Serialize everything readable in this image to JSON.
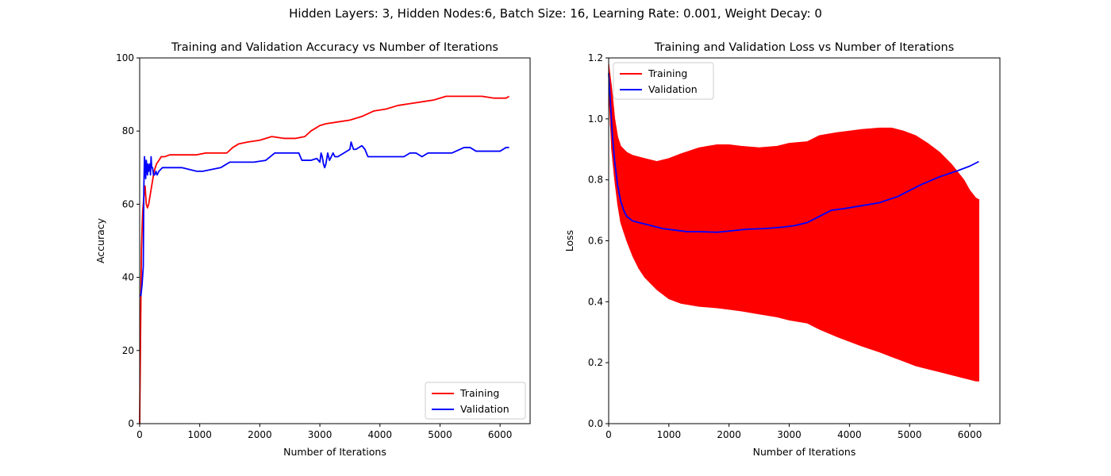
{
  "suptitle": "Hidden Layers: 3, Hidden Nodes:6, Batch Size: 16, Learning Rate: 0.001, Weight Decay: 0",
  "colors": {
    "training": "#ff0000",
    "validation": "#0000ff"
  },
  "chart_data": [
    {
      "type": "line",
      "title": "Training and Validation Accuracy vs Number of Iterations",
      "xlabel": "Number of Iterations",
      "ylabel": "Accuracy",
      "xlim": [
        0,
        6500
      ],
      "ylim": [
        0,
        100
      ],
      "xticks": [
        0,
        1000,
        2000,
        3000,
        4000,
        5000,
        6000
      ],
      "yticks": [
        0,
        20,
        40,
        60,
        80,
        100
      ],
      "legend": "lower-right",
      "series": [
        {
          "name": "Training",
          "color": "#ff0000",
          "x": [
            0,
            15,
            30,
            50,
            70,
            90,
            110,
            130,
            150,
            180,
            210,
            240,
            280,
            320,
            360,
            420,
            500,
            600,
            700,
            800,
            950,
            1100,
            1300,
            1450,
            1550,
            1650,
            1800,
            2000,
            2200,
            2400,
            2600,
            2750,
            2850,
            3000,
            3100,
            3300,
            3500,
            3700,
            3900,
            4100,
            4300,
            4500,
            4700,
            4900,
            5100,
            5300,
            5500,
            5700,
            5900,
            6100,
            6150
          ],
          "y": [
            0,
            25,
            48,
            58,
            62,
            65,
            60,
            59,
            60,
            63,
            66,
            69,
            71,
            72,
            73,
            73,
            73.5,
            73.5,
            73.5,
            73.5,
            73.5,
            74,
            74,
            74,
            75.5,
            76.5,
            77,
            77.5,
            78.5,
            78,
            78,
            78.5,
            80,
            81.5,
            82,
            82.5,
            83,
            84,
            85.5,
            86,
            87,
            87.5,
            88,
            88.5,
            89.5,
            89.5,
            89.5,
            89.5,
            89,
            89,
            89.5
          ]
        },
        {
          "name": "Validation",
          "color": "#0000ff",
          "x": [
            0,
            20,
            40,
            60,
            70,
            80,
            90,
            100,
            110,
            120,
            130,
            140,
            150,
            160,
            170,
            180,
            190,
            200,
            215,
            230,
            250,
            270,
            290,
            320,
            380,
            500,
            700,
            950,
            1050,
            1350,
            1500,
            1700,
            1900,
            2100,
            2250,
            2400,
            2550,
            2650,
            2700,
            2850,
            2950,
            3000,
            3020,
            3040,
            3060,
            3080,
            3100,
            3130,
            3160,
            3190,
            3220,
            3250,
            3300,
            3400,
            3500,
            3520,
            3560,
            3600,
            3700,
            3750,
            3800,
            4000,
            4200,
            4400,
            4500,
            4600,
            4700,
            4800,
            5000,
            5200,
            5400,
            5500,
            5600,
            5800,
            6000,
            6100,
            6150
          ],
          "y": [
            35,
            35,
            38,
            43,
            65,
            73,
            70,
            67,
            72,
            70,
            68,
            71,
            69,
            70,
            71,
            68,
            73,
            70,
            70,
            68,
            68,
            69,
            68,
            69,
            70,
            70,
            70,
            69,
            69,
            70,
            71.5,
            71.5,
            71.5,
            72,
            74,
            74,
            74,
            74,
            72,
            72,
            72.5,
            71.5,
            74,
            73,
            71,
            70,
            71,
            74,
            72,
            73,
            74,
            73,
            73,
            74,
            75,
            77,
            75,
            75,
            76,
            75,
            73,
            73,
            73,
            73,
            74,
            74,
            73,
            74,
            74,
            74,
            75.5,
            75.5,
            74.5,
            74.5,
            74.5,
            75.5,
            75.5
          ]
        }
      ]
    },
    {
      "type": "line",
      "title": "Training and Validation Loss vs Number of Iterations",
      "xlabel": "Number of Iterations",
      "ylabel": "Loss",
      "xlim": [
        0,
        6500
      ],
      "ylim": [
        0,
        1.2
      ],
      "xticks": [
        0,
        1000,
        2000,
        3000,
        4000,
        5000,
        6000
      ],
      "yticks": [
        0.0,
        0.2,
        0.4,
        0.6,
        0.8,
        1.0,
        1.2
      ],
      "legend": "top-left",
      "series": [
        {
          "name": "Training",
          "color": "#ff0000",
          "style": "dense-oscillation",
          "x": [
            0,
            50,
            100,
            150,
            200,
            300,
            400,
            500,
            600,
            800,
            1000,
            1200,
            1500,
            1800,
            2000,
            2200,
            2500,
            2800,
            3000,
            3300,
            3500,
            3800,
            4000,
            4200,
            4500,
            4700,
            4900,
            5100,
            5300,
            5500,
            5700,
            5900,
            6000,
            6100,
            6150
          ],
          "upper": [
            1.18,
            1.1,
            1.0,
            0.94,
            0.91,
            0.89,
            0.88,
            0.875,
            0.87,
            0.86,
            0.87,
            0.885,
            0.905,
            0.915,
            0.915,
            0.91,
            0.905,
            0.91,
            0.92,
            0.925,
            0.945,
            0.955,
            0.96,
            0.965,
            0.97,
            0.97,
            0.96,
            0.945,
            0.92,
            0.89,
            0.85,
            0.8,
            0.765,
            0.74,
            0.735
          ],
          "lower": [
            1.1,
            0.9,
            0.8,
            0.72,
            0.66,
            0.6,
            0.55,
            0.51,
            0.48,
            0.44,
            0.41,
            0.395,
            0.385,
            0.38,
            0.375,
            0.37,
            0.36,
            0.35,
            0.34,
            0.33,
            0.31,
            0.285,
            0.27,
            0.255,
            0.235,
            0.22,
            0.205,
            0.19,
            0.18,
            0.17,
            0.16,
            0.15,
            0.145,
            0.14,
            0.14
          ]
        },
        {
          "name": "Validation",
          "color": "#0000ff",
          "x": [
            0,
            30,
            60,
            100,
            150,
            200,
            250,
            300,
            400,
            500,
            700,
            900,
            1100,
            1300,
            1500,
            1800,
            2000,
            2300,
            2600,
            2900,
            3100,
            3300,
            3500,
            3700,
            3900,
            4200,
            4500,
            4800,
            5000,
            5200,
            5500,
            5800,
            6000,
            6150
          ],
          "y": [
            1.15,
            1.05,
            0.95,
            0.86,
            0.78,
            0.73,
            0.7,
            0.68,
            0.665,
            0.66,
            0.65,
            0.64,
            0.635,
            0.63,
            0.63,
            0.628,
            0.632,
            0.638,
            0.64,
            0.645,
            0.65,
            0.66,
            0.68,
            0.7,
            0.705,
            0.715,
            0.725,
            0.745,
            0.765,
            0.785,
            0.81,
            0.83,
            0.845,
            0.86
          ]
        }
      ]
    }
  ]
}
